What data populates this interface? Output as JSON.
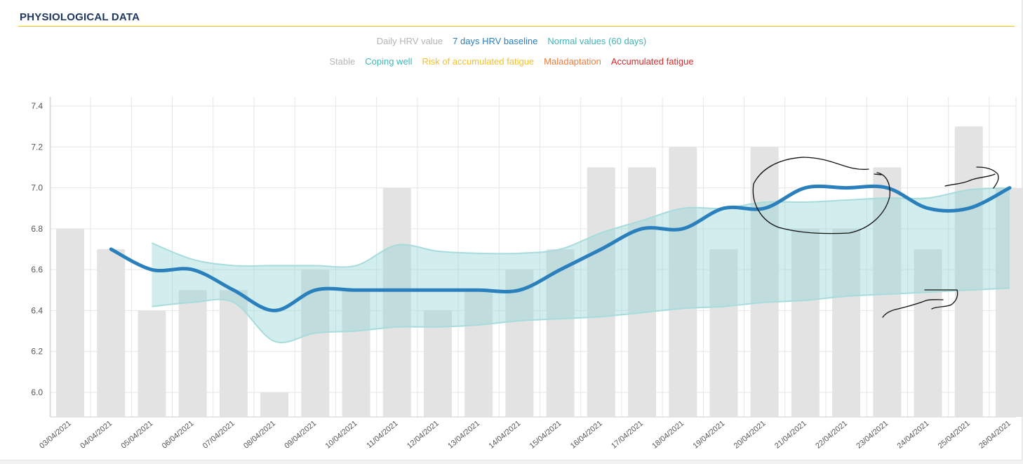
{
  "section": {
    "title": "PHYSIOLOGICAL DATA"
  },
  "colors": {
    "daily_bar": "#e3e3e3",
    "baseline_line": "#2a7fbd",
    "normal_band": "#8fd3d3",
    "normal_band_edge": "#a8dcdc",
    "accent_rule": "#f0c419",
    "annotation": "#111111"
  },
  "legend": {
    "row1": [
      {
        "label": "Daily HRV value",
        "color": "#b5b5b5"
      },
      {
        "label": "7 days HRV baseline",
        "color": "#2a7fbd"
      },
      {
        "label": "Normal values (60 days)",
        "color": "#45b3b3"
      }
    ],
    "row2": [
      {
        "label": "Stable",
        "color": "#b5b5b5"
      },
      {
        "label": "Coping well",
        "color": "#3fb8b8"
      },
      {
        "label": "Risk of accumulated fatigue",
        "color": "#f2c12e"
      },
      {
        "label": "Maladaptation",
        "color": "#ef7d3c"
      },
      {
        "label": "Accumulated fatigue",
        "color": "#d62c2c"
      }
    ]
  },
  "chart_data": {
    "type": "bar",
    "categories": [
      "03/04/2021",
      "04/04/2021",
      "05/04/2021",
      "06/04/2021",
      "07/04/2021",
      "08/04/2021",
      "09/04/2021",
      "10/04/2021",
      "11/04/2021",
      "12/04/2021",
      "13/04/2021",
      "14/04/2021",
      "15/04/2021",
      "16/04/2021",
      "17/04/2021",
      "18/04/2021",
      "19/04/2021",
      "20/04/2021",
      "21/04/2021",
      "22/04/2021",
      "23/04/2021",
      "24/04/2021",
      "25/04/2021",
      "26/04/2021"
    ],
    "y_ticks": [
      "6.0",
      "6.2",
      "6.4",
      "6.6",
      "6.8",
      "7.0",
      "7.2",
      "7.4"
    ],
    "ylim": [
      5.88,
      7.45
    ],
    "grid": true,
    "legend_position": "top-center",
    "series": [
      {
        "name": "Daily HRV value",
        "type": "bar",
        "values": [
          6.8,
          6.7,
          6.4,
          6.5,
          6.5,
          6.0,
          6.6,
          6.5,
          7.0,
          6.4,
          6.5,
          6.6,
          6.7,
          7.1,
          7.1,
          7.2,
          6.7,
          7.2,
          6.8,
          6.8,
          7.1,
          6.7,
          7.3,
          7.0
        ]
      },
      {
        "name": "7 days HRV baseline",
        "type": "line",
        "values": [
          null,
          6.7,
          6.6,
          6.6,
          6.5,
          6.4,
          6.5,
          6.5,
          6.5,
          6.5,
          6.5,
          6.5,
          6.6,
          6.7,
          6.8,
          6.8,
          6.9,
          6.9,
          7.0,
          7.0,
          7.0,
          6.9,
          6.9,
          7.0
        ]
      },
      {
        "name": "Normal values (60 days)",
        "type": "area-range",
        "upper": [
          null,
          null,
          6.73,
          6.65,
          6.62,
          6.62,
          6.62,
          6.62,
          6.72,
          6.69,
          6.68,
          6.68,
          6.7,
          6.78,
          6.84,
          6.9,
          6.9,
          6.93,
          6.93,
          6.94,
          6.95,
          6.95,
          6.99,
          7.0
        ],
        "lower": [
          null,
          null,
          6.42,
          6.44,
          6.44,
          6.25,
          6.29,
          6.3,
          6.32,
          6.32,
          6.33,
          6.35,
          6.36,
          6.37,
          6.39,
          6.41,
          6.42,
          6.44,
          6.45,
          6.47,
          6.48,
          6.49,
          6.5,
          6.51
        ]
      }
    ]
  }
}
